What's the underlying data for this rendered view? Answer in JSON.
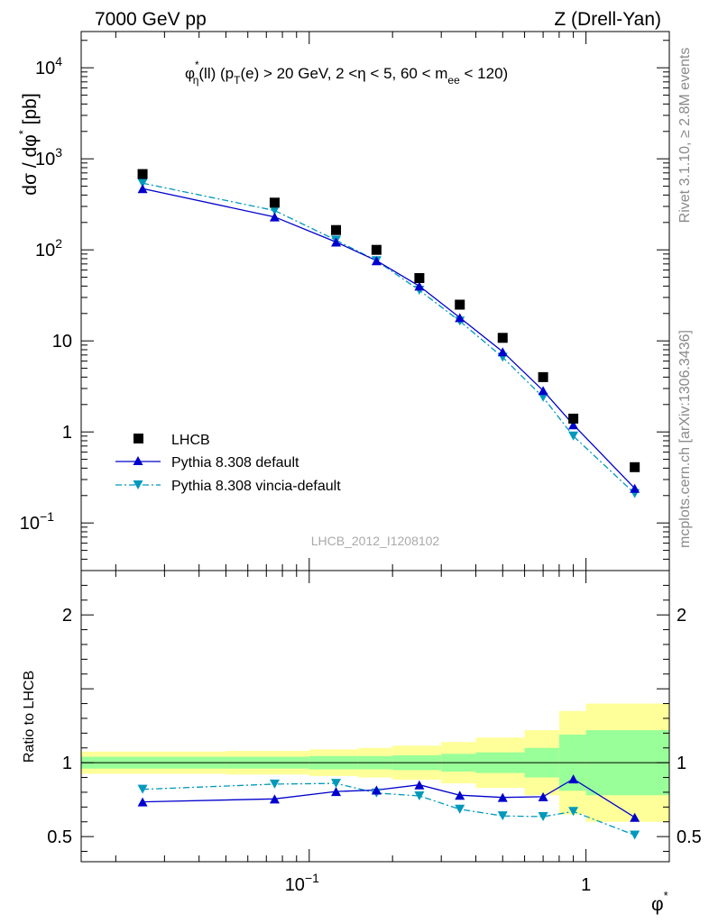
{
  "header": {
    "left": "7000 GeV pp",
    "right": "Z (Drell-Yan)"
  },
  "side_text": {
    "rivet": "Rivet 3.1.10, ≥ 2.8M events",
    "mcplots": "mcplots.cern.ch [arXiv:1306.3436]"
  },
  "colors": {
    "data": "#000000",
    "pythia_default": "#0000cc",
    "pythia_vincia": "#0099bb",
    "band_inner": "#99ff99",
    "band_outer": "#ffff99"
  },
  "chart_data": [
    {
      "type": "scatter",
      "title": "φ*η(ll) (pT(e) > 20 GeV, 2 <η < 5, 60 < mee < 120)",
      "title_parts": {
        "phi": "φ",
        "star": "*",
        "eta_sub": "η",
        "t1": "(ll) (p",
        "t_sub": "T",
        "t2": "(e) > 20 GeV, 2 <η < 5, 60 < m",
        "ee_sub": "ee",
        "t3": " < 120)"
      },
      "ylabel": "dσ / dφ* [pb]",
      "ylabel_parts": {
        "main": "dσ / dφ",
        "star": "*",
        "unit": " [pb]"
      },
      "watermark": "LHCB_2012_I1208102",
      "xscale": "log",
      "yscale": "log",
      "xlim": [
        0.015,
        2.0
      ],
      "ylim": [
        0.03,
        25000
      ],
      "y_ticks": [
        {
          "value": 0.1,
          "base": "10",
          "exp": "−1"
        },
        {
          "value": 1,
          "base": "1",
          "exp": ""
        },
        {
          "value": 10,
          "base": "10",
          "exp": ""
        },
        {
          "value": 100,
          "base": "10",
          "exp": "2"
        },
        {
          "value": 1000,
          "base": "10",
          "exp": "3"
        },
        {
          "value": 10000,
          "base": "10",
          "exp": "4"
        }
      ],
      "legend": {
        "position": "lower-left",
        "entries": [
          "LHCB",
          "Pythia 8.308 default",
          "Pythia 8.308 vincia-default"
        ]
      },
      "x": [
        0.025,
        0.075,
        0.125,
        0.175,
        0.25,
        0.35,
        0.5,
        0.7,
        0.9,
        1.5
      ],
      "series": [
        {
          "name": "LHCB",
          "values": [
            680,
            330,
            165,
            100,
            49,
            25,
            10.8,
            4.0,
            1.4,
            0.41
          ]
        },
        {
          "name": "Pythia 8.308 default",
          "values": [
            470,
            230,
            122,
            76,
            40,
            18,
            7.6,
            2.85,
            1.2,
            0.24
          ]
        },
        {
          "name": "Pythia 8.308 vincia-default",
          "values": [
            540,
            270,
            128,
            76,
            36,
            16.5,
            6.6,
            2.4,
            0.9,
            0.21
          ]
        }
      ]
    },
    {
      "type": "line",
      "ylabel": "Ratio to LHCB",
      "xlabel": "φ*",
      "xlabel_parts": {
        "main": "φ",
        "star": "*"
      },
      "xscale": "log",
      "xlim": [
        0.015,
        2.0
      ],
      "ylim": [
        0.33,
        2.3
      ],
      "y_ticks": [
        0.5,
        1,
        2
      ],
      "y_tick_labels": [
        "0.5",
        "1",
        "2"
      ],
      "x_ticks": [
        {
          "value": 0.1,
          "base": "10",
          "exp": "−1"
        },
        {
          "value": 1,
          "base": "1",
          "exp": ""
        }
      ],
      "x": [
        0.025,
        0.075,
        0.125,
        0.175,
        0.25,
        0.35,
        0.5,
        0.7,
        0.9,
        1.5
      ],
      "series": [
        {
          "name": "Pythia 8.308 default",
          "values": [
            0.735,
            0.755,
            0.805,
            0.815,
            0.85,
            0.78,
            0.765,
            0.77,
            0.89,
            0.63
          ]
        },
        {
          "name": "Pythia 8.308 vincia-default",
          "values": [
            0.82,
            0.855,
            0.86,
            0.795,
            0.775,
            0.685,
            0.64,
            0.635,
            0.67,
            0.51
          ]
        }
      ],
      "bands": {
        "edges": [
          0.015,
          0.05,
          0.1,
          0.15,
          0.2,
          0.3,
          0.4,
          0.6,
          0.8,
          1.0,
          2.0
        ],
        "inner": [
          0.04,
          0.04,
          0.045,
          0.045,
          0.05,
          0.06,
          0.07,
          0.1,
          0.19,
          0.22
        ],
        "outer": [
          0.075,
          0.08,
          0.09,
          0.1,
          0.115,
          0.14,
          0.17,
          0.22,
          0.35,
          0.4
        ]
      }
    }
  ]
}
